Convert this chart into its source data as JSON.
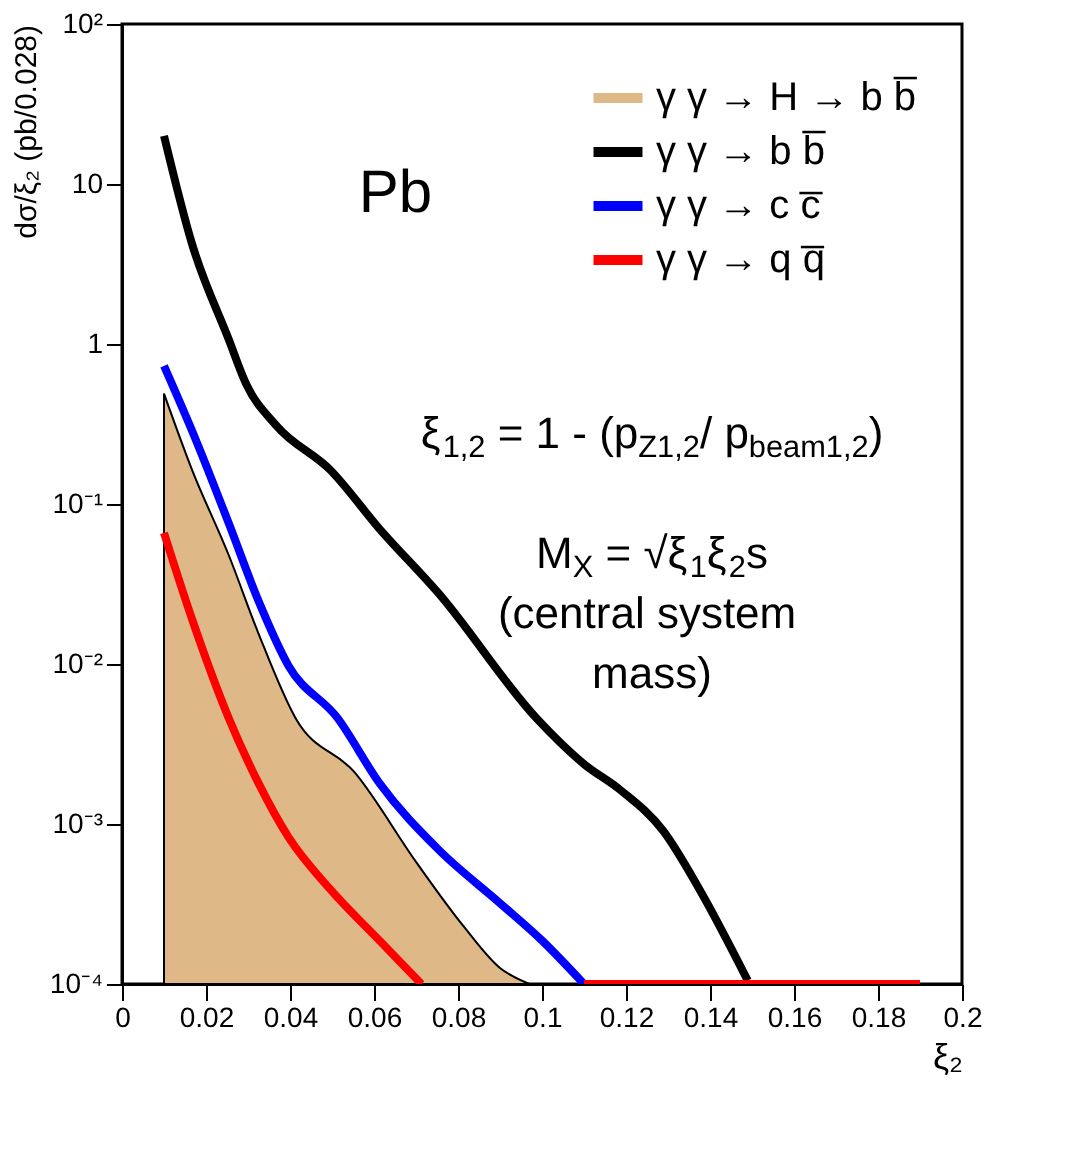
{
  "chart_data": {
    "type": "line",
    "xlabel": "ξ₂",
    "ylabel": "dσ/ξ₂ (pb/0.028)",
    "series": [
      {
        "name": "γ γ → H → b b̅",
        "type": "area",
        "color": "#deb887",
        "x": [
          0.01,
          0.0167,
          0.0254,
          0.0325,
          0.0413,
          0.0554,
          0.07,
          0.0813,
          0.09,
          0.097
        ],
        "values": [
          0.49,
          0.163,
          0.048,
          0.0155,
          0.0046,
          0.0021,
          0.00058,
          0.00023,
          0.000126,
          0.0001
        ]
      },
      {
        "name": "γ γ →  b b̅",
        "color": "#000000",
        "x": [
          0.01,
          0.0167,
          0.0254,
          0.0296,
          0.0367,
          0.0496,
          0.0613,
          0.0754,
          0.0988,
          0.11,
          0.1188,
          0.1288,
          0.1375,
          0.149
        ],
        "values": [
          20,
          4.2,
          1.07,
          0.56,
          0.31,
          0.163,
          0.07,
          0.0276,
          0.00455,
          0.00237,
          0.00162,
          0.00091,
          0.00039,
          0.000105
        ]
      },
      {
        "name": "γ γ → c c̅",
        "color": "#0000ff",
        "x": [
          0.01,
          0.0179,
          0.0254,
          0.0325,
          0.0396,
          0.0513,
          0.0613,
          0.0754,
          0.09,
          0.1,
          0.11
        ],
        "values": [
          0.73,
          0.24,
          0.076,
          0.0248,
          0.0098,
          0.0046,
          0.0018,
          0.00069,
          0.00032,
          0.000187,
          0.0001
        ]
      },
      {
        "name": "γ γ → q q̅",
        "color": "#ff0000",
        "x": [
          0.01,
          0.0167,
          0.0254,
          0.0325,
          0.0396,
          0.0496,
          0.0613,
          0.0713,
          0.09,
          0.11,
          0.19
        ],
        "values": [
          0.066,
          0.019,
          0.0046,
          0.0018,
          0.00083,
          0.00039,
          0.000187,
          0.0001,
          null,
          0.0001,
          0.0001
        ]
      }
    ],
    "log": "y",
    "xlim": [
      0,
      0.2
    ],
    "xticks": [
      0,
      0.02,
      0.04,
      0.06,
      0.08,
      0.1,
      0.12,
      0.14,
      0.16,
      0.18,
      0.2
    ],
    "ylim": [
      0.0001,
      100
    ],
    "yticks": [
      {
        "value": 0.0001,
        "label": "10⁻⁴"
      },
      {
        "value": 0.001,
        "label": "10⁻³"
      },
      {
        "value": 0.01,
        "label": "10⁻²"
      },
      {
        "value": 0.1,
        "label": "10⁻¹"
      },
      {
        "value": 1,
        "label": "1"
      },
      {
        "value": 10,
        "label": "10"
      },
      {
        "value": 100,
        "label": "10²"
      }
    ],
    "grid": false,
    "legend": "top right",
    "annotations": [
      "Pb",
      "ξ$_{1,2}$ = 1 - (p$_{Z1,2}$/ p$_{beam1,2}$)",
      "M$_{X}$ = √ξ$_{1}$ξ$_{2}$s",
      "(central system",
      "mass)"
    ]
  }
}
